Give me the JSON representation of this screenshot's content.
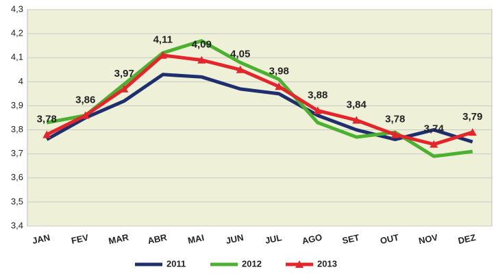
{
  "chart_data": {
    "type": "line",
    "categories": [
      "JAN",
      "FEV",
      "MAR",
      "ABR",
      "MAI",
      "JUN",
      "JUL",
      "AGO",
      "SET",
      "OUT",
      "NOV",
      "DEZ"
    ],
    "series": [
      {
        "name": "2011",
        "color": "#1f2f6e",
        "values": [
          3.76,
          3.85,
          3.92,
          4.03,
          4.02,
          3.97,
          3.95,
          3.86,
          3.8,
          3.76,
          3.8,
          3.75
        ]
      },
      {
        "name": "2012",
        "color": "#4cb030",
        "values": [
          3.83,
          3.86,
          3.99,
          4.12,
          4.17,
          4.08,
          4.01,
          3.83,
          3.77,
          3.79,
          3.69,
          3.71
        ]
      },
      {
        "name": "2013",
        "color": "#e3262b",
        "marker": "triangle",
        "values": [
          3.78,
          3.86,
          3.97,
          4.11,
          4.09,
          4.05,
          3.98,
          3.88,
          3.84,
          3.78,
          3.74,
          3.79
        ],
        "value_labels": [
          "3,78",
          "3,86",
          "3,97",
          "4,11",
          "4,09",
          "4,05",
          "3,98",
          "3,88",
          "3,84",
          "3,78",
          "3,74",
          "3,79"
        ]
      }
    ],
    "ylim": [
      3.4,
      4.3
    ],
    "yticks": [
      {
        "value": 3.4,
        "label": "3,4"
      },
      {
        "value": 3.5,
        "label": "3,5"
      },
      {
        "value": 3.6,
        "label": "3,6"
      },
      {
        "value": 3.7,
        "label": "3,7"
      },
      {
        "value": 3.8,
        "label": "3,8"
      },
      {
        "value": 3.9,
        "label": "3,9"
      },
      4,
      {
        "value": 4.1,
        "label": "4,1"
      },
      {
        "value": 4.2,
        "label": "4,2"
      },
      {
        "value": 4.3,
        "label": "4,3"
      }
    ],
    "grid": true,
    "legend": "bottom"
  }
}
